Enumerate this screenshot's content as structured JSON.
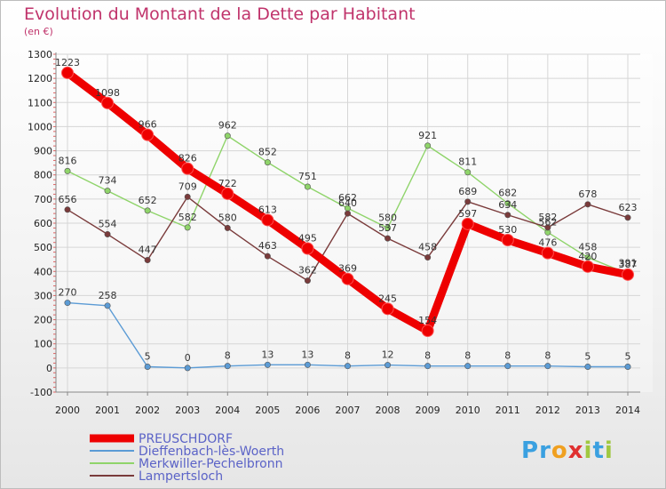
{
  "chart_data": {
    "type": "line",
    "title": "Evolution du Montant de la Dette par Habitant",
    "subtitle": "(en €)",
    "x": [
      "2000",
      "2001",
      "2002",
      "2003",
      "2004",
      "2005",
      "2006",
      "2007",
      "2008",
      "2009",
      "2010",
      "2011",
      "2012",
      "2013",
      "2014"
    ],
    "yticks": [
      -100,
      0,
      100,
      200,
      300,
      400,
      500,
      600,
      700,
      800,
      900,
      1000,
      1100,
      1200,
      1300
    ],
    "ylim": [
      -100,
      1300
    ],
    "grid": true,
    "series": [
      {
        "name": "PREUSCHDORF",
        "color": "#ee0000",
        "values": [
          1223,
          1098,
          966,
          826,
          722,
          613,
          495,
          369,
          245,
          154,
          597,
          530,
          476,
          420,
          387
        ]
      },
      {
        "name": "Dieffenbach-lès-Woerth",
        "color": "#5b9bd5",
        "values": [
          270,
          258,
          5,
          0,
          8,
          13,
          13,
          8,
          12,
          8,
          8,
          8,
          8,
          5,
          5
        ]
      },
      {
        "name": "Merkwiller-Pechelbronn",
        "color": "#8fd46a",
        "values": [
          816,
          734,
          652,
          582,
          962,
          852,
          751,
          662,
          580,
          921,
          811,
          682,
          562,
          458,
          391
        ]
      },
      {
        "name": "Lampertsloch",
        "color": "#7a3b3b",
        "values": [
          656,
          554,
          447,
          709,
          580,
          463,
          362,
          640,
          537,
          458,
          689,
          634,
          582,
          678,
          623
        ]
      }
    ]
  },
  "logo": {
    "letters": [
      "P",
      "r",
      "o",
      "x",
      "i",
      "t",
      "i"
    ],
    "colors": [
      "#3aa0e0",
      "#3aa0e0",
      "#f0a020",
      "#e03030",
      "#a0c840",
      "#3aa0e0",
      "#a0c840"
    ]
  }
}
